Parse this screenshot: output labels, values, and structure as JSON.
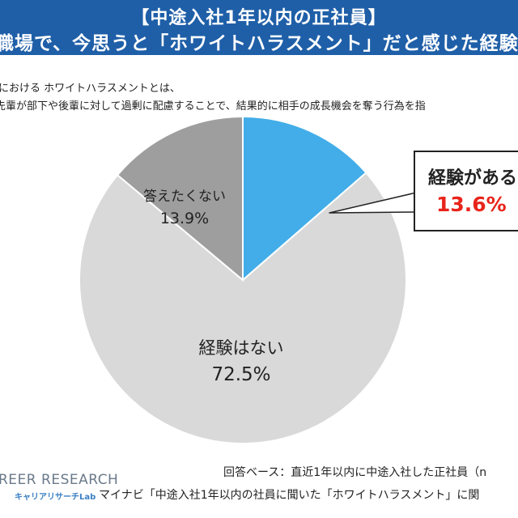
{
  "header": {
    "title_line1": "【中途入社1年以内の正社員】",
    "title_line2": "職場で、今思うと「ホワイトハラスメント」だと感じた経験"
  },
  "definition": {
    "line1": "における ホワイトハラスメントとは、",
    "line2": "先輩が部下や後輩に対して過剰に配慮することで、結果的に相手の成長機会を奪う行為を指"
  },
  "chart_data": {
    "type": "pie",
    "categories": [
      "経験がある",
      "経験はない",
      "答えたくない"
    ],
    "values": [
      13.6,
      72.5,
      13.9
    ],
    "value_labels": [
      "13.6%",
      "72.5%",
      "13.9%"
    ],
    "colors": [
      "#42ade8",
      "#d9d9d9",
      "#9e9e9e"
    ],
    "title": "職場で、今思うと「ホワイトハラスメント」だと感じた経験"
  },
  "footer": {
    "brand": "REER RESEARCH",
    "lab": "キャリアリサーチLab",
    "base": "回答ベース：直近1年以内に中途入社した正社員（n",
    "source": "マイナビ「中途入社1年以内の社員に聞いた「ホワイトハラスメント」に関"
  }
}
